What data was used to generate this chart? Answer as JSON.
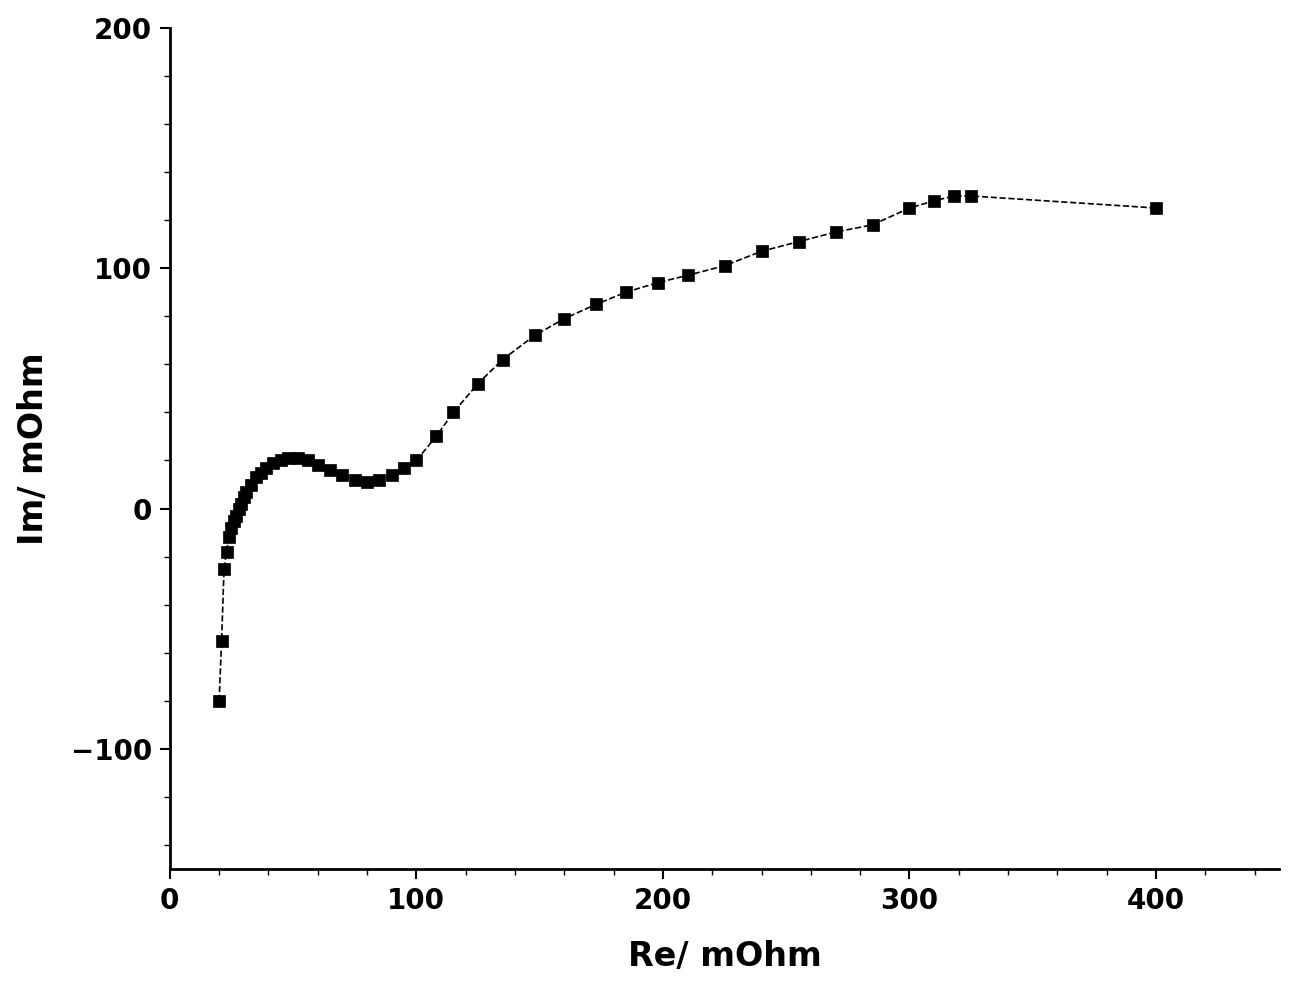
{
  "x": [
    20,
    21,
    22,
    23,
    24,
    25,
    26,
    27,
    28,
    29,
    30,
    31,
    33,
    35,
    37,
    39,
    42,
    45,
    48,
    52,
    56,
    60,
    65,
    70,
    75,
    80,
    85,
    90,
    95,
    100,
    108,
    115,
    125,
    135,
    148,
    160,
    173,
    185,
    198,
    210,
    225,
    240,
    255,
    270,
    285,
    300,
    310,
    318,
    325,
    400
  ],
  "y": [
    -80,
    -55,
    -25,
    -18,
    -12,
    -8,
    -5,
    -3,
    0,
    2,
    5,
    7,
    10,
    13,
    15,
    17,
    19,
    20,
    21,
    21,
    20,
    18,
    16,
    14,
    12,
    11,
    12,
    14,
    17,
    20,
    30,
    40,
    52,
    62,
    72,
    79,
    85,
    90,
    94,
    97,
    101,
    107,
    111,
    115,
    118,
    125,
    128,
    130,
    130,
    125
  ],
  "marker": "s",
  "marker_size": 9,
  "line_style": "--",
  "line_color": "#000000",
  "marker_color": "#000000",
  "xlabel": "Re/ mOhm",
  "ylabel": "Im/ mOhm",
  "xlim": [
    0,
    450
  ],
  "ylim": [
    -150,
    200
  ],
  "xticks": [
    0,
    100,
    200,
    300,
    400
  ],
  "yticks": [
    -100,
    0,
    100,
    200
  ],
  "tick_fontsize": 20,
  "label_fontsize": 24,
  "background_color": "#ffffff",
  "spine_color": "#000000"
}
